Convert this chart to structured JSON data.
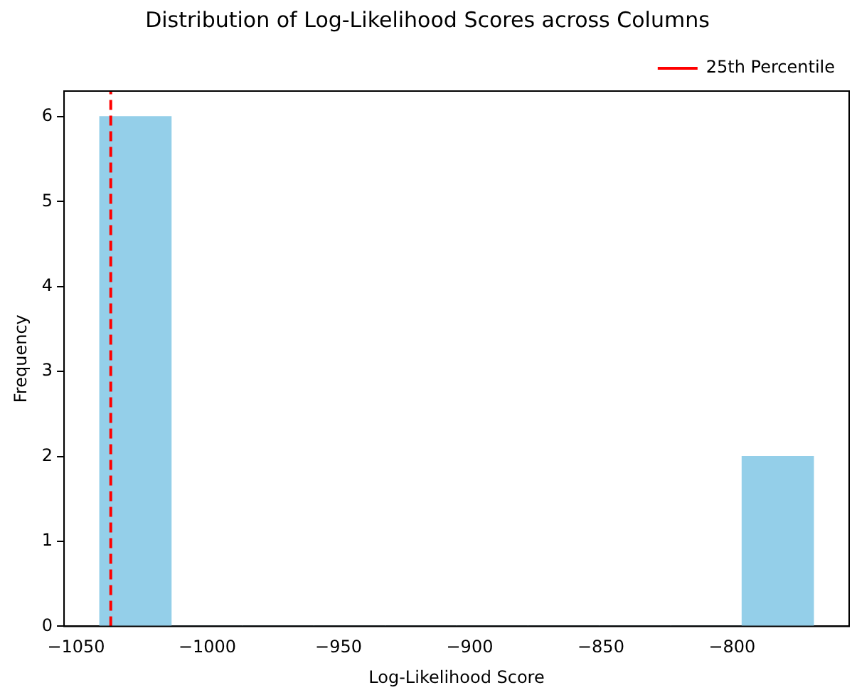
{
  "chart_data": {
    "type": "histogram",
    "title": "Distribution of Log-Likelihood Scores across Columns",
    "xlabel": "Log-Likelihood Score",
    "ylabel": "Frequency",
    "bins": [
      -1041,
      -1013.8,
      -986.6,
      -959.4,
      -932.2,
      -905,
      -877.8,
      -850.6,
      -823.4,
      -796.2,
      -769
    ],
    "values": [
      6,
      0,
      0,
      0,
      0,
      0,
      0,
      0,
      0,
      2
    ],
    "color": "#94cfe9",
    "xlim": [
      -1054.6,
      -755.4
    ],
    "xticks": [
      -1050,
      -1000,
      -950,
      -900,
      -850,
      -800
    ],
    "ylim": [
      0,
      6.3
    ],
    "yticks": [
      0,
      1,
      2,
      3,
      4,
      5,
      6
    ],
    "ref_lines": [
      {
        "axis": "x",
        "value": -1036.8,
        "label": "25th Percentile",
        "color": "#ff0000",
        "line_style": "dashed"
      }
    ],
    "legend": "top right",
    "grid": false
  }
}
